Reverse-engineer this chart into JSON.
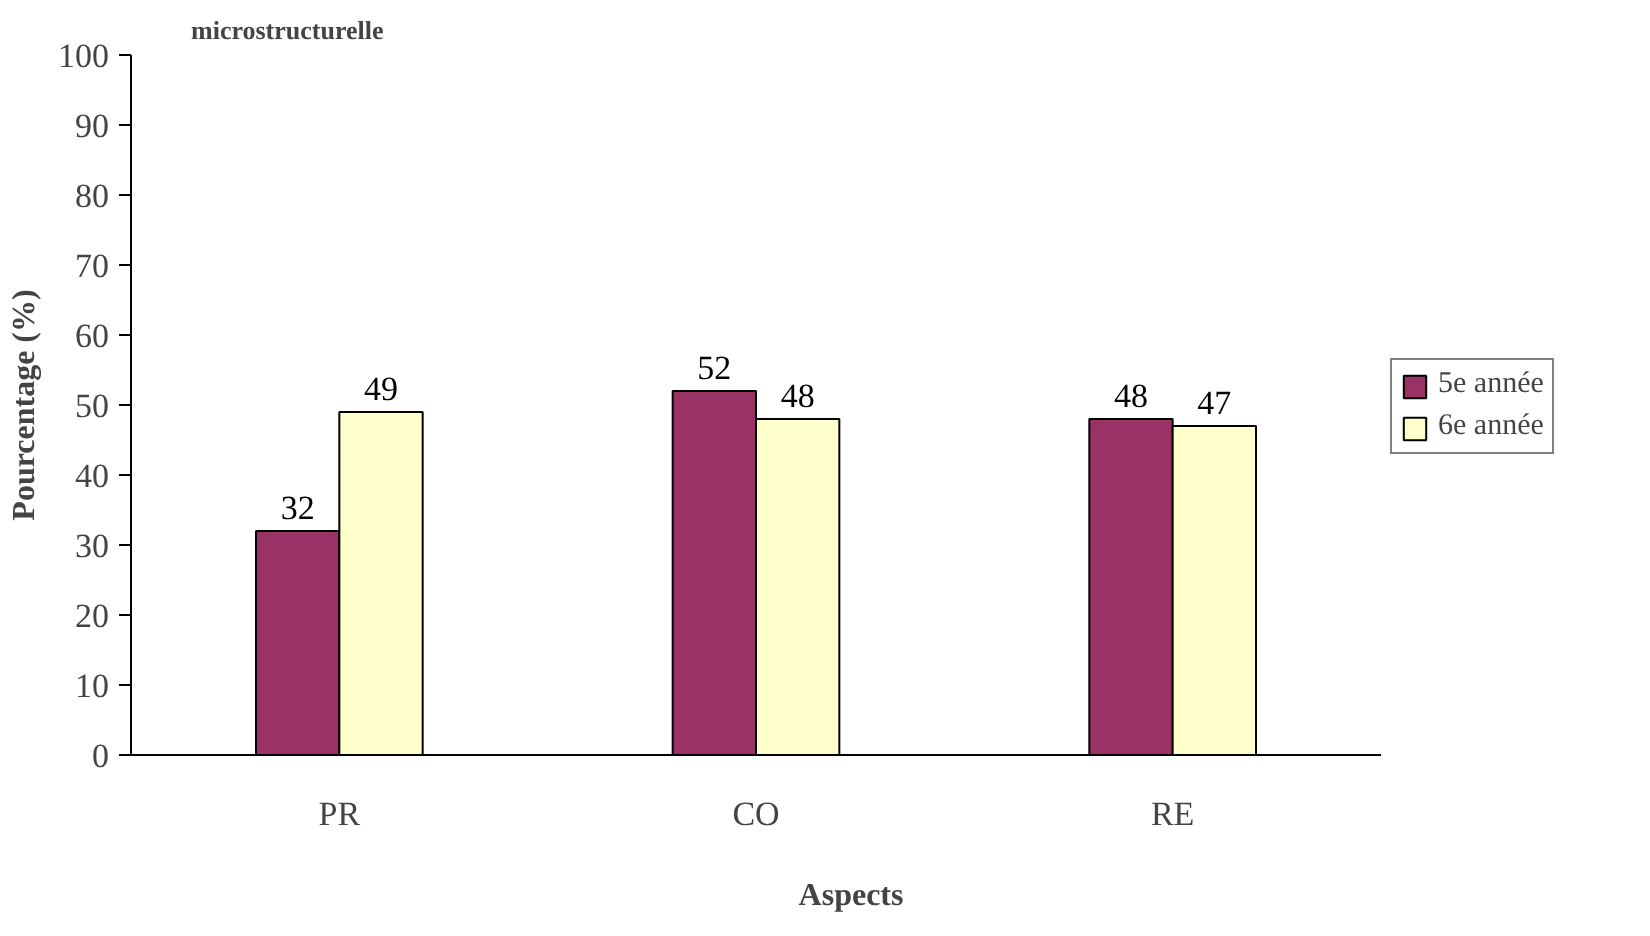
{
  "chart_data": {
    "type": "bar",
    "title": "microstructurelle",
    "xlabel": "Aspects",
    "ylabel": "Pourcentage (%)",
    "categories": [
      "PR",
      "CO",
      "RE"
    ],
    "series": [
      {
        "name": "5e année",
        "color": "#993366",
        "values": [
          32,
          52,
          48
        ]
      },
      {
        "name": "6e année",
        "color": "#ffffcc",
        "values": [
          49,
          48,
          47
        ]
      }
    ],
    "ylim": [
      0,
      100
    ],
    "yticks": [
      0,
      10,
      20,
      30,
      40,
      50,
      60,
      70,
      80,
      90,
      100
    ],
    "data_labels": true,
    "grid": false,
    "legend": "right"
  }
}
